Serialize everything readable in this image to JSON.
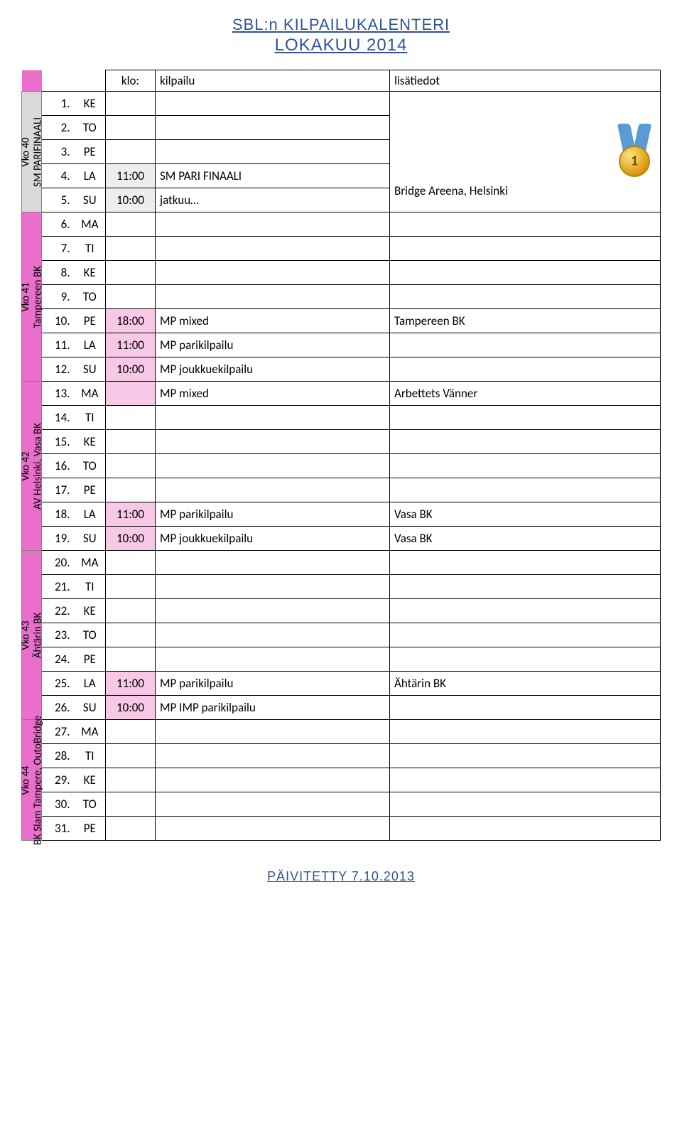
{
  "title_line1": "SBL:n KILPAILUKALENTERI",
  "title_line2": "LOKAKUU 2014",
  "header": {
    "klo": "klo:",
    "comp": "kilpailu",
    "info": "lisätiedot"
  },
  "footer": "PÄIVITETTY 7.10.2013",
  "colors": {
    "week_pink": "#ea6fcd",
    "week_gray": "#d9d9d9",
    "cell_pink": "#f7c9e6",
    "cell_gray": "#ededed",
    "title_blue": "#2f5496"
  },
  "weeks": [
    {
      "label": "Vko 40",
      "sub": "SM PARIFINAALI",
      "bg": "gray",
      "rows": [
        {
          "n": "1.",
          "d": "KE",
          "klo": "",
          "comp": "",
          "info": "",
          "medal": true
        },
        {
          "n": "2.",
          "d": "TO",
          "klo": "",
          "comp": "",
          "info": ""
        },
        {
          "n": "3.",
          "d": "PE",
          "klo": "",
          "comp": "",
          "info": ""
        },
        {
          "n": "4.",
          "d": "LA",
          "klo": "11:00",
          "comp": "SM PARI FINAALI",
          "info": "Bridge Areena, Helsinki",
          "hl": "gray"
        },
        {
          "n": "5.",
          "d": "SU",
          "klo": "10:00",
          "comp": "jatkuu…",
          "info": "",
          "hl": "gray"
        }
      ]
    },
    {
      "label": "Vko 41",
      "sub": "Tampereen BK",
      "bg": "pink",
      "rows": [
        {
          "n": "6.",
          "d": "MA",
          "klo": "",
          "comp": "",
          "info": ""
        },
        {
          "n": "7.",
          "d": "TI",
          "klo": "",
          "comp": "",
          "info": ""
        },
        {
          "n": "8.",
          "d": "KE",
          "klo": "",
          "comp": "",
          "info": ""
        },
        {
          "n": "9.",
          "d": "TO",
          "klo": "",
          "comp": "",
          "info": ""
        },
        {
          "n": "10.",
          "d": "PE",
          "klo": "18:00",
          "comp": "MP mixed",
          "info": "Tampereen BK",
          "hl": "pink"
        },
        {
          "n": "11.",
          "d": "LA",
          "klo": "11:00",
          "comp": "MP parikilpailu",
          "info": "",
          "hl": "pink"
        },
        {
          "n": "12.",
          "d": "SU",
          "klo": "10:00",
          "comp": "MP joukkuekilpailu",
          "info": "",
          "hl": "pink"
        }
      ]
    },
    {
      "label": "Vko 42",
      "sub": "AV Helsinki, Vasa BK",
      "bg": "pink",
      "rows": [
        {
          "n": "13.",
          "d": "MA",
          "klo": "",
          "comp": "MP mixed",
          "info": "Arbettets Vänner",
          "hl": "pink"
        },
        {
          "n": "14.",
          "d": "TI",
          "klo": "",
          "comp": "",
          "info": ""
        },
        {
          "n": "15.",
          "d": "KE",
          "klo": "",
          "comp": "",
          "info": ""
        },
        {
          "n": "16.",
          "d": "TO",
          "klo": "",
          "comp": "",
          "info": ""
        },
        {
          "n": "17.",
          "d": "PE",
          "klo": "",
          "comp": "",
          "info": ""
        },
        {
          "n": "18.",
          "d": "LA",
          "klo": "11:00",
          "comp": "MP parikilpailu",
          "info": "Vasa BK",
          "hl": "pink"
        },
        {
          "n": "19.",
          "d": "SU",
          "klo": "10:00",
          "comp": "MP joukkuekilpailu",
          "info": "Vasa BK",
          "hl": "pink"
        }
      ]
    },
    {
      "label": "Vko 43",
      "sub": "Ähtärin BK",
      "bg": "pink",
      "rows": [
        {
          "n": "20.",
          "d": "MA",
          "klo": "",
          "comp": "",
          "info": ""
        },
        {
          "n": "21.",
          "d": "TI",
          "klo": "",
          "comp": "",
          "info": ""
        },
        {
          "n": "22.",
          "d": "KE",
          "klo": "",
          "comp": "",
          "info": ""
        },
        {
          "n": "23.",
          "d": "TO",
          "klo": "",
          "comp": "",
          "info": ""
        },
        {
          "n": "24.",
          "d": "PE",
          "klo": "",
          "comp": "",
          "info": ""
        },
        {
          "n": "25.",
          "d": "LA",
          "klo": "11:00",
          "comp": "MP parikilpailu",
          "info": "Ähtärin BK",
          "hl": "pink"
        },
        {
          "n": "26.",
          "d": "SU",
          "klo": "10:00",
          "comp": "MP IMP parikilpailu",
          "info": "",
          "hl": "pink"
        }
      ]
    },
    {
      "label": "Vko 44",
      "sub": "BK Slam Tampere, OutoBridge",
      "bg": "pink",
      "rows": [
        {
          "n": "27.",
          "d": "MA",
          "klo": "",
          "comp": "",
          "info": ""
        },
        {
          "n": "28.",
          "d": "TI",
          "klo": "",
          "comp": "",
          "info": ""
        },
        {
          "n": "29.",
          "d": "KE",
          "klo": "",
          "comp": "",
          "info": ""
        },
        {
          "n": "30.",
          "d": "TO",
          "klo": "",
          "comp": "",
          "info": ""
        },
        {
          "n": "31.",
          "d": "PE",
          "klo": "",
          "comp": "",
          "info": ""
        }
      ]
    }
  ]
}
